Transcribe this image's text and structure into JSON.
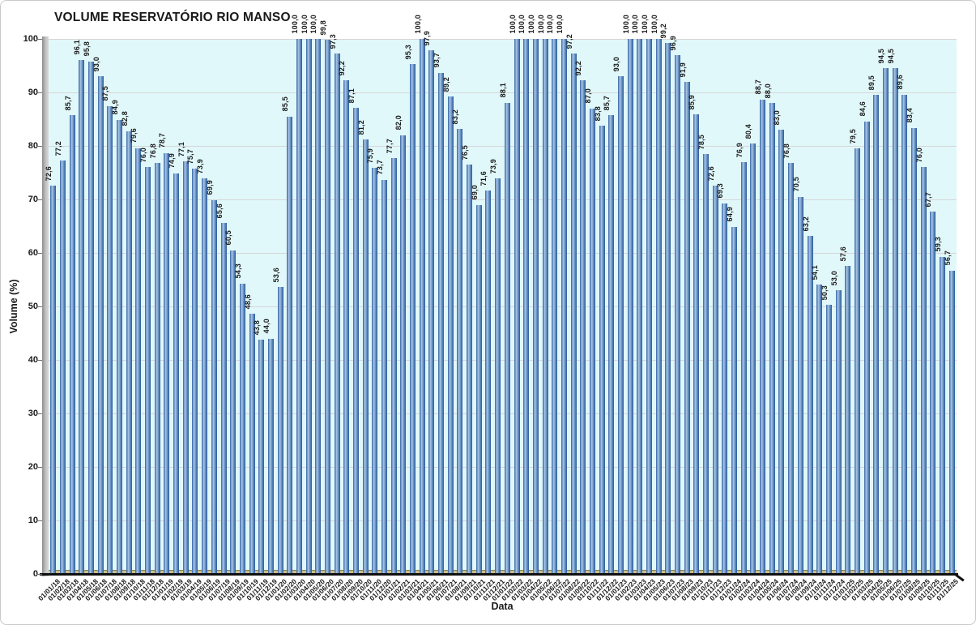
{
  "chart_data": {
    "type": "bar",
    "title": "VOLUME RESERVATÓRIO RIO MANSO",
    "xlabel": "Data",
    "ylabel": "Volume (%)",
    "ylim": [
      0,
      100
    ],
    "ytick_step": 10,
    "grid": true,
    "legend": false,
    "decimal_separator": ",",
    "yticks": [
      "0",
      "10",
      "20",
      "30",
      "40",
      "50",
      "60",
      "70",
      "80",
      "90",
      "100"
    ],
    "categories": [
      "01/01/18",
      "01/02/18",
      "01/03/18",
      "01/04/18",
      "01/05/18",
      "01/06/18",
      "01/07/18",
      "01/08/18",
      "01/09/18",
      "01/10/18",
      "01/11/18",
      "01/12/18",
      "01/01/19",
      "01/02/19",
      "01/03/19",
      "01/04/19",
      "01/05/19",
      "01/06/19",
      "01/07/19",
      "01/08/19",
      "01/09/19",
      "01/10/19",
      "01/11/19",
      "01/12/19",
      "01/01/20",
      "01/02/20",
      "01/03/20",
      "01/04/20",
      "01/05/20",
      "01/06/20",
      "01/07/20",
      "01/08/20",
      "01/09/20",
      "01/10/20",
      "01/11/20",
      "01/12/20",
      "01/01/21",
      "01/02/21",
      "01/03/21",
      "01/04/21",
      "01/05/21",
      "01/06/21",
      "01/07/21",
      "01/08/21",
      "01/09/21",
      "01/10/21",
      "01/11/21",
      "01/12/21",
      "01/01/22",
      "01/02/22",
      "01/03/22",
      "01/04/22",
      "01/05/22",
      "01/06/22",
      "01/07/22",
      "01/08/22",
      "01/09/22",
      "01/10/22",
      "01/11/22",
      "01/12/22",
      "01/01/23",
      "01/02/23",
      "01/03/23",
      "01/04/23",
      "01/05/23",
      "01/06/23",
      "01/07/23",
      "01/08/23",
      "01/09/23",
      "01/10/23",
      "01/11/23",
      "01/12/23",
      "01/01/24",
      "01/02/24",
      "01/03/24",
      "01/04/24",
      "01/05/24",
      "01/06/24",
      "01/07/24",
      "01/08/24",
      "01/09/24",
      "01/10/24",
      "01/11/24",
      "01/12/24",
      "01/01/25",
      "01/02/25",
      "01/03/25",
      "01/04/25",
      "01/05/25",
      "01/06/25",
      "01/07/25",
      "01/08/25",
      "01/09/25",
      "01/10/25",
      "01/11/25",
      "01/12/25"
    ],
    "values": [
      72.6,
      77.2,
      85.7,
      96.1,
      95.8,
      93.0,
      87.5,
      84.9,
      82.8,
      79.6,
      76.0,
      76.8,
      78.7,
      74.9,
      77.1,
      75.7,
      73.9,
      69.9,
      65.6,
      60.5,
      54.3,
      48.6,
      43.8,
      44.0,
      53.6,
      85.5,
      100.0,
      100.0,
      100.0,
      99.8,
      97.3,
      92.2,
      87.1,
      81.2,
      75.9,
      73.7,
      77.7,
      82.0,
      95.3,
      100.0,
      97.9,
      93.7,
      89.2,
      83.2,
      76.5,
      69.0,
      71.6,
      73.9,
      88.1,
      100.0,
      100.0,
      100.0,
      100.0,
      100.0,
      100.0,
      97.2,
      92.2,
      87.0,
      83.8,
      85.7,
      93.0,
      100.0,
      100.0,
      100.0,
      100.0,
      99.2,
      96.9,
      91.9,
      85.9,
      78.5,
      72.6,
      69.3,
      64.9,
      76.9,
      80.4,
      88.7,
      88.0,
      83.0,
      76.8,
      70.5,
      63.2,
      54.1,
      50.3,
      53.0,
      57.6,
      79.5,
      84.6,
      89.5,
      94.5,
      94.5,
      89.6,
      83.4,
      76.0,
      67.7,
      59.3,
      56.7
    ],
    "value_labels": [
      "72,6",
      "77,2",
      "85,7",
      "96,1",
      "95,8",
      "93,0",
      "87,5",
      "84,9",
      "82,8",
      "79,6",
      "76,0",
      "76,8",
      "78,7",
      "74,9",
      "77,1",
      "75,7",
      "73,9",
      "69,9",
      "65,6",
      "60,5",
      "54,3",
      "48,6",
      "43,8",
      "44,0",
      "53,6",
      "85,5",
      "100,0",
      "100,0",
      "100,0",
      "99,8",
      "97,3",
      "92,2",
      "87,1",
      "81,2",
      "75,9",
      "73,7",
      "77,7",
      "82,0",
      "95,3",
      "100,0",
      "97,9",
      "93,7",
      "89,2",
      "83,2",
      "76,5",
      "69,0",
      "71,6",
      "73,9",
      "88,1",
      "100,0",
      "100,0",
      "100,0",
      "100,0",
      "100,0",
      "100,0",
      "97,2",
      "92,2",
      "87,0",
      "83,8",
      "85,7",
      "93,0",
      "100,0",
      "100,0",
      "100,0",
      "100,0",
      "99,2",
      "96,9",
      "91,9",
      "85,9",
      "78,5",
      "72,6",
      "69,3",
      "64,9",
      "76,9",
      "80,4",
      "88,7",
      "88,0",
      "83,0",
      "76,8",
      "70,5",
      "63,2",
      "54,1",
      "50,3",
      "53,0",
      "57,6",
      "79,5",
      "84,6",
      "89,5",
      "94,5",
      "94,5",
      "89,6",
      "83,4",
      "76,0",
      "67,7",
      "59,3",
      "56,7"
    ],
    "colors": {
      "bar_dark": "#2e5c99",
      "bar_mid": "#6e96c8",
      "bar_light": "#aac6e4",
      "plot_background": "#e1f8fa",
      "gridline": "#d6d6d6",
      "side_wall": "#a6a6a6",
      "floor": "#c9bd8a",
      "axis": "#111111",
      "text": "#1a1a1a"
    }
  }
}
